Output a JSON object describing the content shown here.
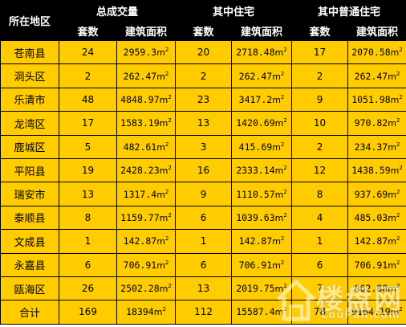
{
  "header": {
    "region": "所在地区",
    "group_total": "总成交量",
    "group_residential": "其中住宅",
    "group_ordinary": "其中普通住宅",
    "col_count": "套数",
    "col_area": "建筑面积"
  },
  "unit": "m",
  "unit_sup": "2",
  "rows": [
    {
      "region": "苍南县",
      "total_count": "24",
      "total_area": "2959.3",
      "res_count": "20",
      "res_area": "2718.48",
      "ord_count": "17",
      "ord_area": "2070.58"
    },
    {
      "region": "洞头区",
      "total_count": "2",
      "total_area": "262.47",
      "res_count": "2",
      "res_area": "262.47",
      "ord_count": "2",
      "ord_area": "262.47"
    },
    {
      "region": "乐清市",
      "total_count": "48",
      "total_area": "4848.97",
      "res_count": "23",
      "res_area": "3417.2",
      "ord_count": "9",
      "ord_area": "1051.98"
    },
    {
      "region": "龙湾区",
      "total_count": "17",
      "total_area": "1583.19",
      "res_count": "13",
      "res_area": "1420.69",
      "ord_count": "10",
      "ord_area": "970.82"
    },
    {
      "region": "鹿城区",
      "total_count": "5",
      "total_area": "482.61",
      "res_count": "3",
      "res_area": "415.69",
      "ord_count": "2",
      "ord_area": "234.37"
    },
    {
      "region": "平阳县",
      "total_count": "19",
      "total_area": "2428.23",
      "res_count": "16",
      "res_area": "2333.14",
      "ord_count": "12",
      "ord_area": "1438.59"
    },
    {
      "region": "瑞安市",
      "total_count": "13",
      "total_area": "1317.4",
      "res_count": "9",
      "res_area": "1110.57",
      "ord_count": "8",
      "ord_area": "937.69"
    },
    {
      "region": "泰顺县",
      "total_count": "8",
      "total_area": "1159.77",
      "res_count": "6",
      "res_area": "1039.63",
      "ord_count": "4",
      "ord_area": "485.03"
    },
    {
      "region": "文成县",
      "total_count": "1",
      "total_area": "142.87",
      "res_count": "1",
      "res_area": "142.87",
      "ord_count": "1",
      "ord_area": "142.87"
    },
    {
      "region": "永嘉县",
      "total_count": "6",
      "total_area": "706.91",
      "res_count": "6",
      "res_area": "706.91",
      "ord_count": "6",
      "ord_area": "706.91"
    },
    {
      "region": "瓯海区",
      "total_count": "26",
      "total_area": "2502.28",
      "res_count": "13",
      "res_area": "2019.75",
      "ord_count": "7",
      "ord_area": "862.88"
    },
    {
      "region": "合计",
      "total_count": "169",
      "total_area": "18394",
      "res_count": "112",
      "res_area": "15587.4",
      "ord_count": "78",
      "ord_area": "9164.19"
    }
  ],
  "watermark": {
    "cn": "楼盘网",
    "en": "LouPan.com"
  },
  "colors": {
    "header_bg": "#000000",
    "header_text": "#ffffff",
    "cell_bg": "#ffcc00",
    "border": "#000000"
  }
}
